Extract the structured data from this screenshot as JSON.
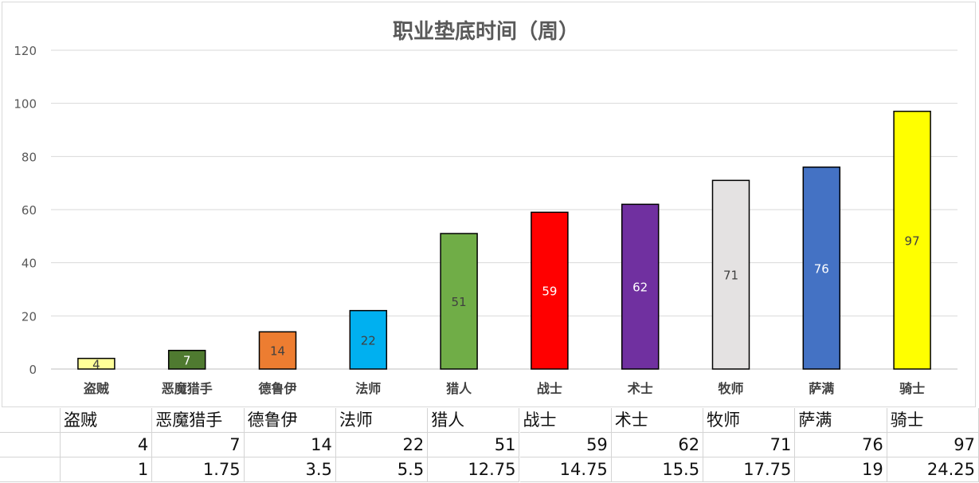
{
  "chart_data": {
    "type": "bar",
    "title": "职业垫底时间（周）",
    "xlabel": "",
    "ylabel": "",
    "ylim": [
      0,
      120
    ],
    "yticks": [
      0,
      20,
      40,
      60,
      80,
      100,
      120
    ],
    "grid": true,
    "categories": [
      "盗贼",
      "恶魔猎手",
      "德鲁伊",
      "法师",
      "猎人",
      "战士",
      "术士",
      "牧师",
      "萨满",
      "骑士"
    ],
    "values": [
      4,
      7,
      14,
      22,
      51,
      59,
      62,
      71,
      76,
      97
    ],
    "bar_colors": [
      "#ffff99",
      "#4f7a30",
      "#ed7d31",
      "#00b0f0",
      "#70ad47",
      "#ff0000",
      "#7030a0",
      "#e4e2e2",
      "#4472c4",
      "#ffff00"
    ],
    "label_colors": [
      "#404040",
      "#ffffff",
      "#404040",
      "#404040",
      "#404040",
      "#ffffff",
      "#ffffff",
      "#404040",
      "#ffffff",
      "#404040"
    ]
  },
  "sheet": {
    "rows": [
      [
        "盗贼",
        "恶魔猎手",
        "德鲁伊",
        "法师",
        "猎人",
        "战士",
        "术士",
        "牧师",
        "萨满",
        "骑士"
      ],
      [
        "4",
        "7",
        "14",
        "22",
        "51",
        "59",
        "62",
        "71",
        "76",
        "97"
      ],
      [
        "1",
        "1.75",
        "3.5",
        "5.5",
        "12.75",
        "14.75",
        "15.5",
        "17.75",
        "19",
        "24.25"
      ]
    ]
  }
}
